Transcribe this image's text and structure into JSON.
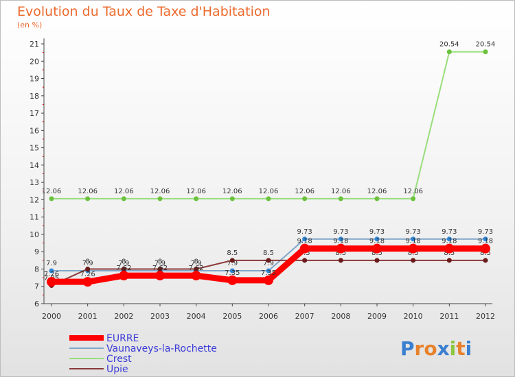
{
  "header": {
    "title": "Evolution du Taux de Taxe d'Habitation",
    "subtitle": "(en %)"
  },
  "brand": {
    "letters": [
      "P",
      "r",
      "o",
      "x",
      "i",
      "t",
      "i"
    ],
    "colors": [
      "#3a7fd0",
      "#e8812b",
      "#e8812b",
      "#3a7fd0",
      "#8cc63f",
      "#e8812b",
      "#3a7fd0"
    ]
  },
  "chart_data": {
    "type": "line",
    "title": "Evolution du Taux de Taxe d'Habitation",
    "ylabel": "(en %)",
    "xlabel": "",
    "x": [
      "2000",
      "2001",
      "2002",
      "2003",
      "2004",
      "2005",
      "2006",
      "2007",
      "2008",
      "2009",
      "2010",
      "2011",
      "2012"
    ],
    "ylim": [
      6,
      21
    ],
    "yticks": [
      6,
      7,
      8,
      9,
      10,
      11,
      12,
      13,
      14,
      15,
      16,
      17,
      18,
      19,
      20,
      21
    ],
    "ytick_labels": [
      "6",
      "7",
      "8",
      "9",
      "10",
      "11",
      "12",
      "13",
      "14",
      "15",
      "16",
      "17",
      "18",
      "19",
      "20",
      "21"
    ],
    "grid": false,
    "legend_position": "bottom-left",
    "series": [
      {
        "name": "Vaunaveys-la-Rochette",
        "color": "#7fa6c9",
        "marker_color": "#2f86d6",
        "width": 2,
        "values": [
          7.9,
          7.9,
          7.9,
          7.9,
          7.9,
          7.9,
          7.9,
          9.73,
          9.73,
          9.73,
          9.73,
          9.73,
          9.73
        ],
        "labels": [
          "7.9",
          "7.9",
          "7.9",
          "7.9",
          "7.9",
          "7.9",
          "7.9",
          "9.73",
          "9.73",
          "9.73",
          "9.73",
          "9.73",
          "9.73"
        ],
        "label_above": true
      },
      {
        "name": "Crest",
        "color": "#98de7c",
        "marker_color": "#6cc13f",
        "width": 2,
        "values": [
          12.06,
          12.06,
          12.06,
          12.06,
          12.06,
          12.06,
          12.06,
          12.06,
          12.06,
          12.06,
          12.06,
          20.54,
          20.54
        ],
        "labels": [
          "12.06",
          "12.06",
          "12.06",
          "12.06",
          "12.06",
          "12.06",
          "12.06",
          "12.06",
          "12.06",
          "12.06",
          "12.06",
          "20.54",
          "20.54"
        ],
        "label_above": true
      },
      {
        "name": "Upie",
        "color": "#8b3a3a",
        "marker_color": "#6b1a1a",
        "width": 2,
        "values": [
          7.05,
          8.0,
          8.0,
          8.0,
          8.0,
          8.5,
          8.5,
          8.5,
          8.5,
          8.5,
          8.5,
          8.5,
          8.5
        ],
        "labels": [
          "7.05",
          "8",
          "8",
          "8",
          "8",
          "8.5",
          "8.5",
          "8.5",
          "8.5",
          "8.5",
          "8.5",
          "8.5",
          "8.5"
        ],
        "label_above": true
      },
      {
        "name": "EURRE",
        "color": "#ff0000",
        "marker_color": "#ff0000",
        "width": 9,
        "values": [
          7.26,
          7.26,
          7.62,
          7.62,
          7.62,
          7.35,
          7.35,
          9.18,
          9.18,
          9.18,
          9.18,
          9.18,
          9.18
        ],
        "labels": [
          "7.26",
          "7.26",
          "7.62",
          "7.62",
          "7.62",
          "7.35",
          "7.35",
          "9.18",
          "9.18",
          "9.18",
          "9.18",
          "9.18",
          "9.18"
        ],
        "label_above": true
      }
    ],
    "legend": [
      "EURRE",
      "Vaunaveys-la-Rochette",
      "Crest",
      "Upie"
    ]
  }
}
